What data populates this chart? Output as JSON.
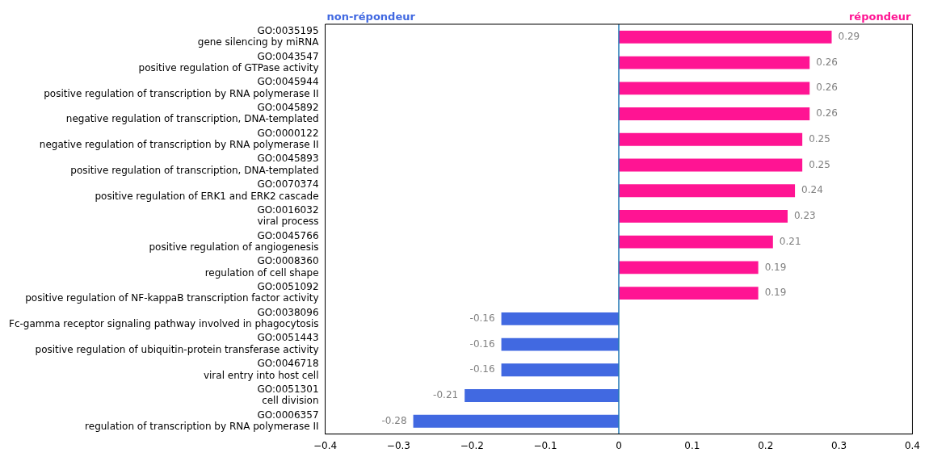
{
  "chart_data": {
    "type": "bar",
    "orientation": "horizontal",
    "categories": [
      "GO:0035195\ngene silencing by miRNA",
      "GO:0043547\npositive regulation of GTPase activity",
      "GO:0045944\npositive regulation of transcription by RNA polymerase II",
      "GO:0045892\nnegative regulation of transcription, DNA-templated",
      "GO:0000122\nnegative regulation of transcription by RNA polymerase II",
      "GO:0045893\npositive regulation of transcription, DNA-templated",
      "GO:0070374\npositive regulation of ERK1 and ERK2 cascade",
      "GO:0016032\nviral process",
      "GO:0045766\npositive regulation of angiogenesis",
      "GO:0008360\nregulation of cell shape",
      "GO:0051092\npositive regulation of NF-kappaB transcription factor activity",
      "GO:0038096\nFc-gamma receptor signaling pathway involved in phagocytosis",
      "GO:0051443\npositive regulation of ubiquitin-protein transferase activity",
      "GO:0046718\nviral entry into host cell",
      "GO:0051301\ncell division",
      "GO:0006357\nregulation of transcription by RNA polymerase II"
    ],
    "values": [
      0.29,
      0.26,
      0.26,
      0.26,
      0.25,
      0.25,
      0.24,
      0.23,
      0.21,
      0.19,
      0.19,
      -0.16,
      -0.16,
      -0.16,
      -0.21,
      -0.28
    ],
    "colors": [
      "#ff1493",
      "#ff1493",
      "#ff1493",
      "#ff1493",
      "#ff1493",
      "#ff1493",
      "#ff1493",
      "#ff1493",
      "#ff1493",
      "#ff1493",
      "#ff1493",
      "#4169e1",
      "#4169e1",
      "#4169e1",
      "#4169e1",
      "#4169e1"
    ],
    "data_labels": true,
    "xlim": [
      -0.4,
      0.4
    ],
    "xticks": [
      {
        "value": -0.4,
        "label": "−0.4"
      },
      {
        "value": -0.3,
        "label": "−0.3"
      },
      {
        "value": -0.2,
        "label": "−0.2"
      },
      {
        "value": -0.1,
        "label": "−0.1"
      },
      0,
      0.1,
      0.2,
      0.3,
      0.4
    ],
    "ref_lines": [
      {
        "axis": "x",
        "value": 0,
        "color": "#1f77b4"
      }
    ],
    "annotations": [
      "non-répondeur",
      "répondeur"
    ],
    "grid": false,
    "legend": false
  }
}
